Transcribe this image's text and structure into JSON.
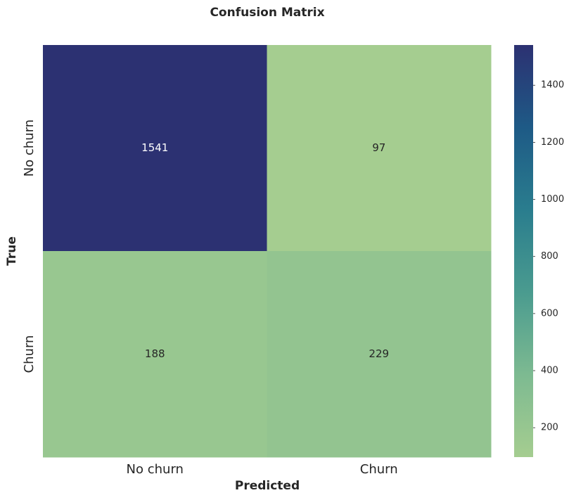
{
  "chart_data": {
    "type": "heatmap",
    "title": "Confusion Matrix",
    "x_label": "Predicted",
    "y_label": "True",
    "x_categories": [
      "No churn",
      "Churn"
    ],
    "y_categories": [
      "No churn",
      "Churn"
    ],
    "values": [
      [
        1541,
        97
      ],
      [
        188,
        229
      ]
    ],
    "colormap": [
      "#a5cd90",
      "#7dba91",
      "#4a9b8f",
      "#2a7d8e",
      "#1e5a86",
      "#2c3172"
    ],
    "clim": [
      97,
      1541
    ],
    "cticks": [
      200,
      400,
      600,
      800,
      1000,
      1200,
      1400
    ]
  }
}
